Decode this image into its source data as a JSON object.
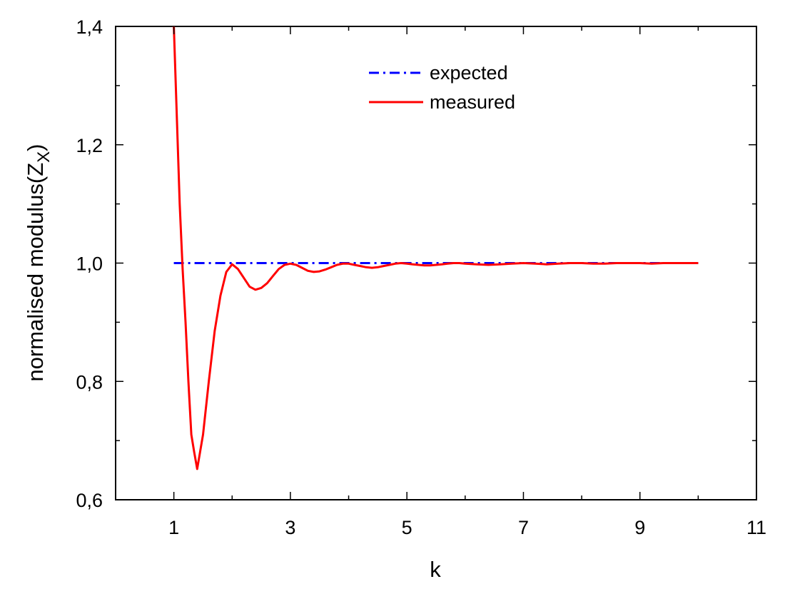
{
  "chart_data": {
    "type": "line",
    "title": "",
    "xlabel": "k",
    "ylabel": "normalised modulus(Z",
    "ylabel_subscript": "X",
    "ylabel_suffix": ")",
    "xlim": [
      0,
      11
    ],
    "ylim": [
      0.6,
      1.4
    ],
    "x_ticks": [
      1,
      3,
      5,
      7,
      9,
      11
    ],
    "x_tick_labels": [
      "1",
      "3",
      "5",
      "7",
      "9",
      "11"
    ],
    "x_minor_ticks": [
      0,
      2,
      4,
      6,
      8,
      10
    ],
    "y_ticks": [
      0.6,
      0.8,
      1.0,
      1.2,
      1.4
    ],
    "y_tick_labels": [
      "0,6",
      "0,8",
      "1,0",
      "1,2",
      "1,4"
    ],
    "y_minor_ticks": [
      0.7,
      0.9,
      1.1,
      1.3
    ],
    "grid": false,
    "legend_position": "top-center",
    "series": [
      {
        "name": "expected",
        "color": "#0000ff",
        "style": "dash-dot",
        "x": [
          1,
          10
        ],
        "y": [
          1.0,
          1.0
        ]
      },
      {
        "name": "measured",
        "color": "#ff0000",
        "style": "solid",
        "x": [
          1.0,
          1.05,
          1.1,
          1.15,
          1.2,
          1.25,
          1.3,
          1.35,
          1.4,
          1.5,
          1.6,
          1.7,
          1.8,
          1.9,
          2.0,
          2.1,
          2.2,
          2.3,
          2.4,
          2.5,
          2.6,
          2.7,
          2.8,
          2.9,
          3.0,
          3.1,
          3.2,
          3.3,
          3.4,
          3.5,
          3.6,
          3.7,
          3.8,
          3.9,
          4.0,
          4.1,
          4.2,
          4.3,
          4.4,
          4.5,
          4.6,
          4.7,
          4.8,
          4.9,
          5.0,
          5.1,
          5.2,
          5.3,
          5.4,
          5.5,
          5.6,
          5.7,
          5.8,
          5.9,
          6.0,
          6.2,
          6.4,
          6.6,
          6.8,
          7.0,
          7.2,
          7.4,
          7.6,
          7.8,
          8.0,
          8.2,
          8.4,
          8.6,
          8.8,
          9.0,
          9.2,
          9.4,
          9.6,
          9.8,
          10.0
        ],
        "y": [
          1.4,
          1.25,
          1.1,
          0.99,
          0.9,
          0.8,
          0.71,
          0.68,
          0.652,
          0.71,
          0.8,
          0.885,
          0.945,
          0.985,
          0.998,
          0.99,
          0.975,
          0.96,
          0.955,
          0.958,
          0.966,
          0.978,
          0.99,
          0.997,
          0.999,
          0.997,
          0.992,
          0.987,
          0.985,
          0.986,
          0.989,
          0.993,
          0.997,
          0.999,
          0.999,
          0.997,
          0.995,
          0.993,
          0.992,
          0.993,
          0.995,
          0.997,
          0.999,
          1.0,
          0.999,
          0.998,
          0.997,
          0.996,
          0.996,
          0.997,
          0.998,
          0.999,
          1.0,
          1.0,
          0.999,
          0.998,
          0.997,
          0.998,
          0.999,
          1.0,
          0.999,
          0.998,
          0.999,
          1.0,
          1.0,
          0.999,
          0.999,
          1.0,
          1.0,
          1.0,
          0.999,
          1.0,
          1.0,
          1.0,
          1.0
        ]
      }
    ]
  }
}
